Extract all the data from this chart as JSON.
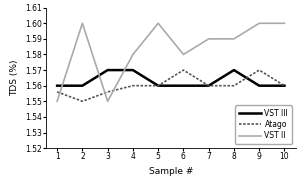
{
  "samples": [
    1,
    2,
    3,
    4,
    5,
    6,
    7,
    8,
    9,
    10
  ],
  "vst_iii": [
    1.56,
    1.56,
    1.57,
    1.57,
    1.56,
    1.56,
    1.56,
    1.57,
    1.56,
    1.56
  ],
  "atago": [
    1.556,
    1.55,
    1.556,
    1.56,
    1.56,
    1.57,
    1.56,
    1.56,
    1.57,
    1.56
  ],
  "vst_ii": [
    1.55,
    1.6,
    1.55,
    1.58,
    1.6,
    1.58,
    1.59,
    1.59,
    1.6,
    1.6
  ],
  "vst_iii_color": "#000000",
  "atago_color": "#555555",
  "vst_ii_color": "#aaaaaa",
  "xlabel": "Sample #",
  "ylabel": "TDS (%)",
  "ylim": [
    1.52,
    1.61
  ],
  "yticks": [
    1.52,
    1.53,
    1.54,
    1.55,
    1.56,
    1.57,
    1.58,
    1.59,
    1.6,
    1.61
  ],
  "legend_labels": [
    "VST III",
    "Atago",
    "VST II"
  ],
  "title": ""
}
